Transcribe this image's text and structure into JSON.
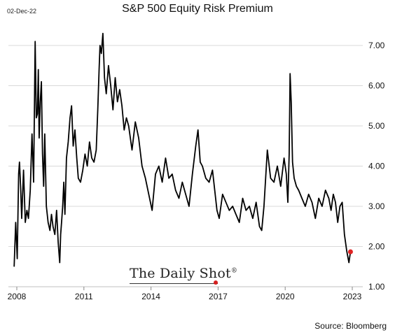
{
  "header": {
    "date_stamp": "02-Dec-22",
    "title": "S&P 500 Equity Risk Premium"
  },
  "footer": {
    "source": "Source: Bloomberg"
  },
  "watermark": {
    "text": "The Daily Shot",
    "mark": "®"
  },
  "colors": {
    "line": "#000000",
    "gridline": "#d9d9d9",
    "highlight_point": "#e02424"
  },
  "chart_data": {
    "type": "line",
    "title": "S&P 500 Equity Risk Premium",
    "xlabel": "",
    "ylabel": "",
    "xlim": [
      2008.0,
      2022.92
    ],
    "ylim": [
      1.0,
      7.5
    ],
    "y_ticks": [
      1.0,
      2.0,
      3.0,
      4.0,
      5.0,
      6.0,
      7.0
    ],
    "y_tick_labels": [
      "1.00",
      "2.00",
      "3.00",
      "4.00",
      "5.00",
      "6.00",
      "7.00"
    ],
    "x_ticks": [
      2008,
      2011,
      2014,
      2017,
      2020,
      2023
    ],
    "x_tick_labels": [
      "2008",
      "2011",
      "2014",
      "2017",
      "2020",
      "2023"
    ],
    "grid": "horizontal",
    "y_axis_position": "right",
    "series": [
      {
        "x": [
          2007.88,
          2007.95,
          2008.02,
          2008.08,
          2008.12,
          2008.17,
          2008.22,
          2008.3,
          2008.38,
          2008.45,
          2008.52,
          2008.6,
          2008.68,
          2008.75,
          2008.82,
          2008.87,
          2008.92,
          2008.96,
          2009.0,
          2009.05,
          2009.1,
          2009.15,
          2009.2,
          2009.25,
          2009.32,
          2009.4,
          2009.48,
          2009.55,
          2009.62,
          2009.7,
          2009.78,
          2009.85,
          2009.92,
          2009.96,
          2010.0,
          2010.05,
          2010.1,
          2010.15,
          2010.22,
          2010.3,
          2010.38,
          2010.45,
          2010.52,
          2010.6,
          2010.68,
          2010.75,
          2010.85,
          2010.95,
          2011.05,
          2011.15,
          2011.25,
          2011.35,
          2011.45,
          2011.55,
          2011.62,
          2011.68,
          2011.72,
          2011.78,
          2011.85,
          2011.92,
          2012.0,
          2012.1,
          2012.2,
          2012.3,
          2012.4,
          2012.5,
          2012.6,
          2012.7,
          2012.8,
          2012.9,
          2013.0,
          2013.15,
          2013.3,
          2013.45,
          2013.6,
          2013.75,
          2013.9,
          2014.05,
          2014.2,
          2014.35,
          2014.5,
          2014.65,
          2014.8,
          2014.95,
          2015.1,
          2015.25,
          2015.4,
          2015.55,
          2015.7,
          2015.85,
          2016.0,
          2016.1,
          2016.2,
          2016.3,
          2016.45,
          2016.6,
          2016.75,
          2016.85,
          2016.95,
          2017.05,
          2017.2,
          2017.35,
          2017.5,
          2017.65,
          2017.8,
          2017.95,
          2018.1,
          2018.25,
          2018.4,
          2018.55,
          2018.7,
          2018.85,
          2018.95,
          2019.05,
          2019.2,
          2019.35,
          2019.5,
          2019.65,
          2019.8,
          2019.95,
          2020.05,
          2020.12,
          2020.18,
          2020.22,
          2020.27,
          2020.33,
          2020.4,
          2020.5,
          2020.6,
          2020.75,
          2020.9,
          2021.05,
          2021.2,
          2021.35,
          2021.5,
          2021.65,
          2021.8,
          2021.95,
          2022.05,
          2022.15,
          2022.25,
          2022.35,
          2022.45,
          2022.55,
          2022.65,
          2022.75,
          2022.85,
          2022.92
        ],
        "y": [
          1.5,
          2.6,
          1.7,
          3.8,
          4.1,
          3.5,
          2.7,
          3.9,
          2.6,
          2.9,
          2.7,
          3.4,
          4.8,
          3.6,
          7.1,
          5.2,
          5.3,
          6.4,
          4.7,
          5.6,
          6.1,
          4.3,
          3.5,
          4.8,
          3.0,
          2.6,
          2.4,
          2.8,
          2.5,
          2.3,
          2.9,
          2.1,
          1.6,
          2.3,
          2.6,
          3.0,
          3.6,
          2.8,
          4.2,
          4.6,
          5.2,
          5.5,
          4.5,
          4.9,
          4.2,
          3.7,
          3.6,
          3.9,
          4.3,
          4.0,
          4.6,
          4.2,
          4.1,
          4.4,
          5.4,
          6.4,
          7.0,
          6.8,
          7.3,
          6.2,
          5.8,
          6.5,
          6.0,
          5.4,
          6.2,
          5.6,
          5.9,
          5.5,
          4.9,
          5.2,
          5.0,
          4.4,
          5.1,
          4.7,
          4.0,
          3.7,
          3.3,
          2.9,
          3.8,
          4.0,
          3.6,
          4.2,
          3.7,
          3.8,
          3.4,
          3.2,
          3.6,
          3.3,
          3.0,
          3.8,
          4.5,
          4.9,
          4.1,
          4.0,
          3.7,
          3.6,
          3.9,
          3.4,
          2.9,
          2.7,
          3.3,
          3.1,
          2.9,
          3.0,
          2.8,
          2.6,
          3.2,
          2.9,
          3.0,
          2.7,
          3.1,
          2.5,
          2.4,
          3.0,
          4.4,
          3.7,
          3.6,
          4.0,
          3.5,
          4.2,
          3.8,
          3.1,
          4.3,
          6.3,
          5.6,
          4.1,
          3.7,
          3.5,
          3.4,
          3.2,
          3.0,
          3.3,
          3.1,
          2.7,
          3.2,
          3.0,
          3.4,
          3.2,
          2.9,
          3.3,
          3.1,
          2.6,
          3.0,
          3.1,
          2.3,
          1.9,
          1.6,
          1.87
        ]
      }
    ],
    "end_marker": {
      "x": 2022.92,
      "y": 1.87
    }
  }
}
